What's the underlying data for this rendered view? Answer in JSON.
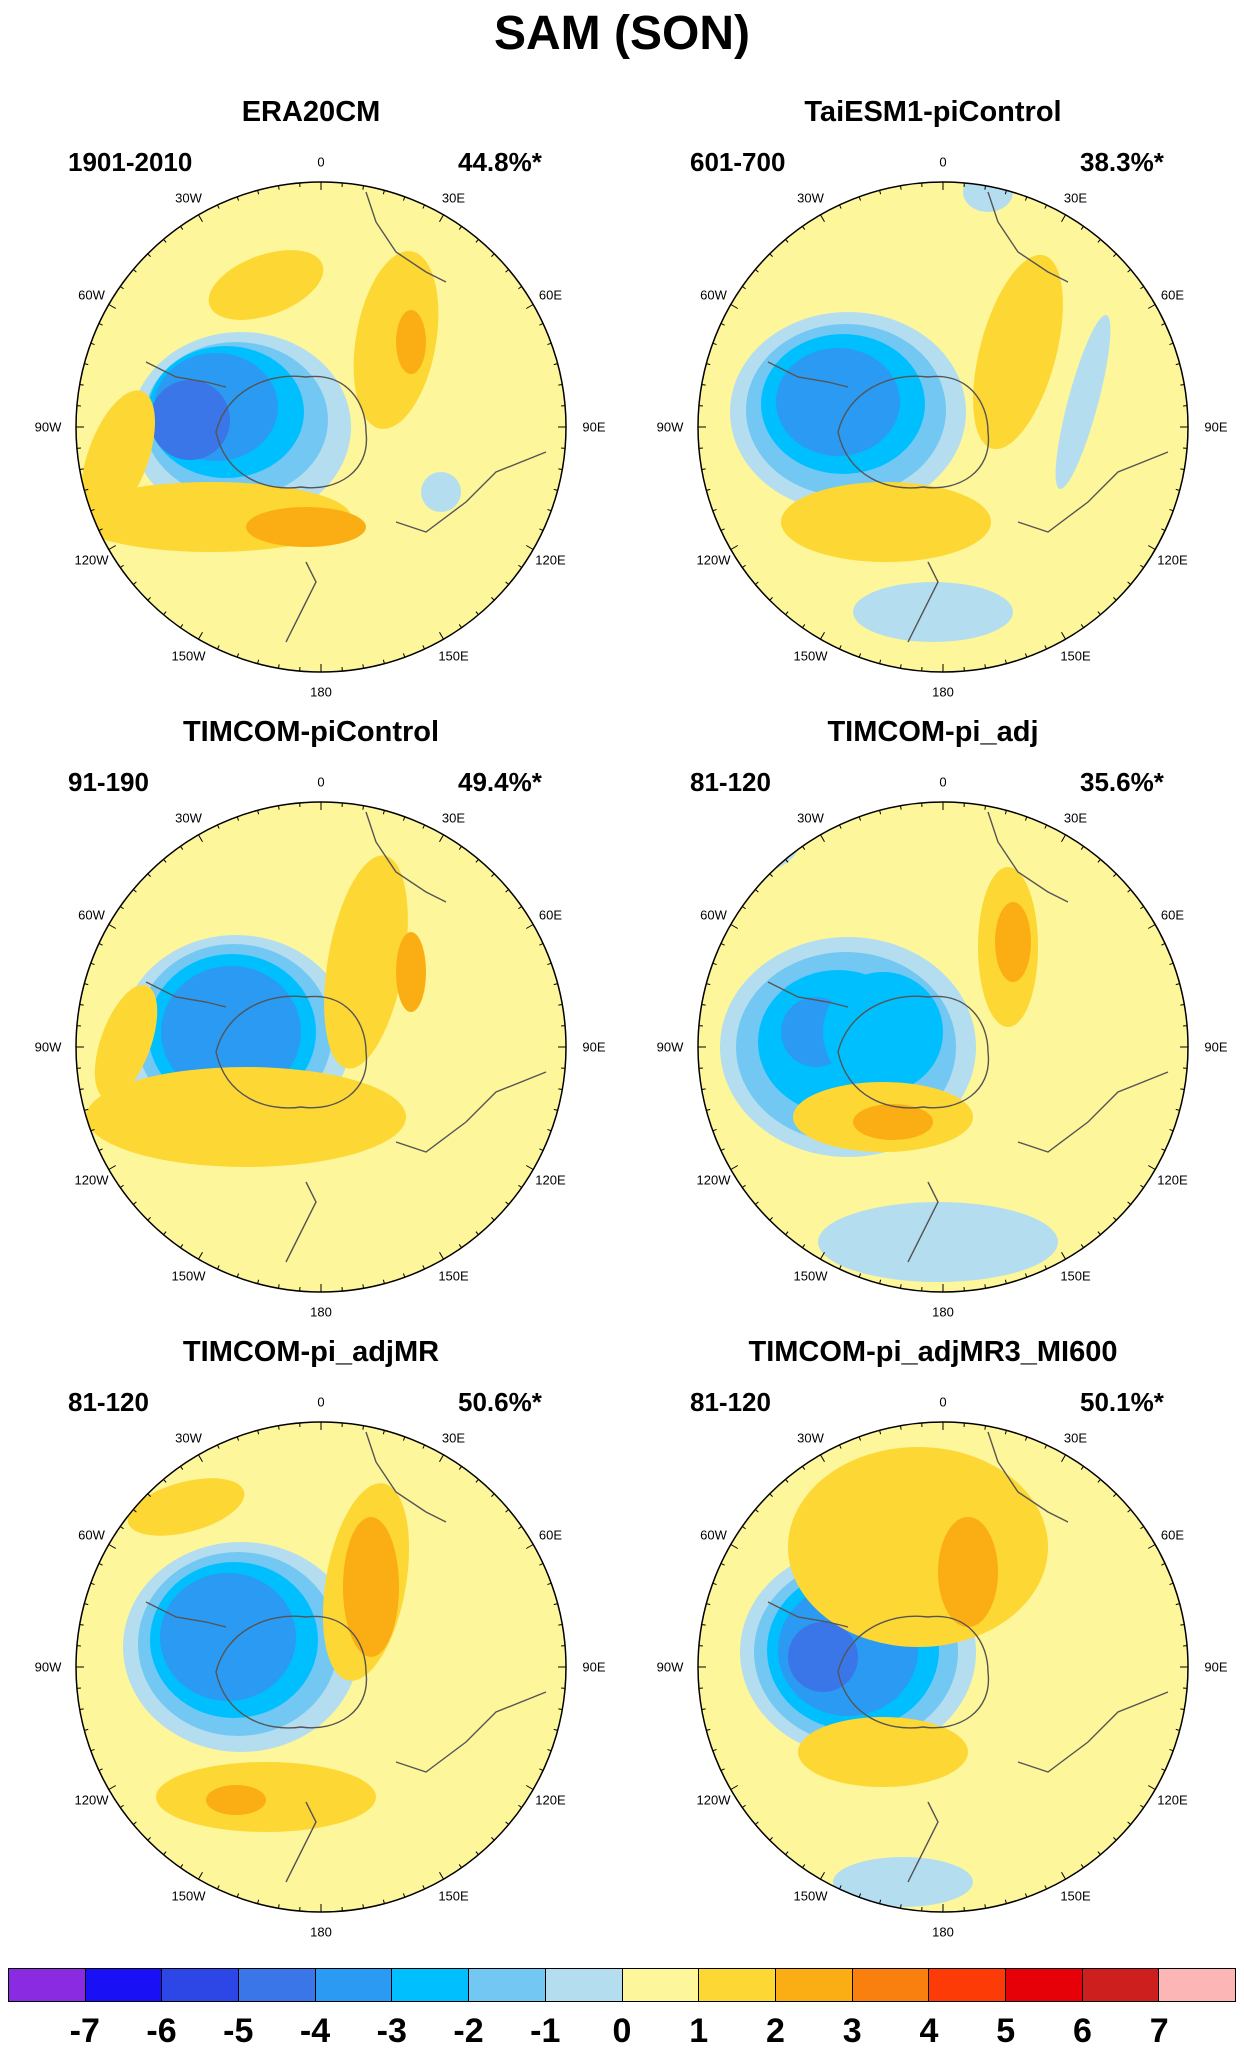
{
  "figure": {
    "title": "SAM (SON)"
  },
  "panels": [
    {
      "title": "ERA20CM",
      "period": "1901-2010",
      "percent": "44.8%*"
    },
    {
      "title": "TaiESM1-piControl",
      "period": "601-700",
      "percent": "38.3%*"
    },
    {
      "title": "TIMCOM-piControl",
      "period": "91-190",
      "percent": "49.4%*"
    },
    {
      "title": "TIMCOM-pi_adj",
      "period": "81-120",
      "percent": "35.6%*"
    },
    {
      "title": "TIMCOM-pi_adjMR",
      "period": "81-120",
      "percent": "50.6%*"
    },
    {
      "title": "TIMCOM-pi_adjMR3_MI600",
      "period": "81-120",
      "percent": "50.1%*"
    }
  ],
  "longitude_labels": {
    "l0": "0",
    "l30e": "30E",
    "l60e": "60E",
    "l90e": "90E",
    "l120e": "120E",
    "l150e": "150E",
    "l180": "180",
    "l150w": "150W",
    "l120w": "120W",
    "l90w": "90W",
    "l60w": "60W",
    "l30w": "30W"
  },
  "colorbar": {
    "colors": [
      "#8a2be2",
      "#1a10f5",
      "#2d46e6",
      "#3a76e8",
      "#2a9af2",
      "#00bfff",
      "#72c8f2",
      "#b4def0",
      "#fdf69a",
      "#fdd734",
      "#fbae13",
      "#f9800f",
      "#fc3b06",
      "#e60008",
      "#ce1f1f",
      "#fcb6b6"
    ],
    "labels": [
      "-7",
      "-6",
      "-5",
      "-4",
      "-3",
      "-2",
      "-1",
      "0",
      "1",
      "2",
      "3",
      "4",
      "5",
      "6",
      "7"
    ]
  }
}
